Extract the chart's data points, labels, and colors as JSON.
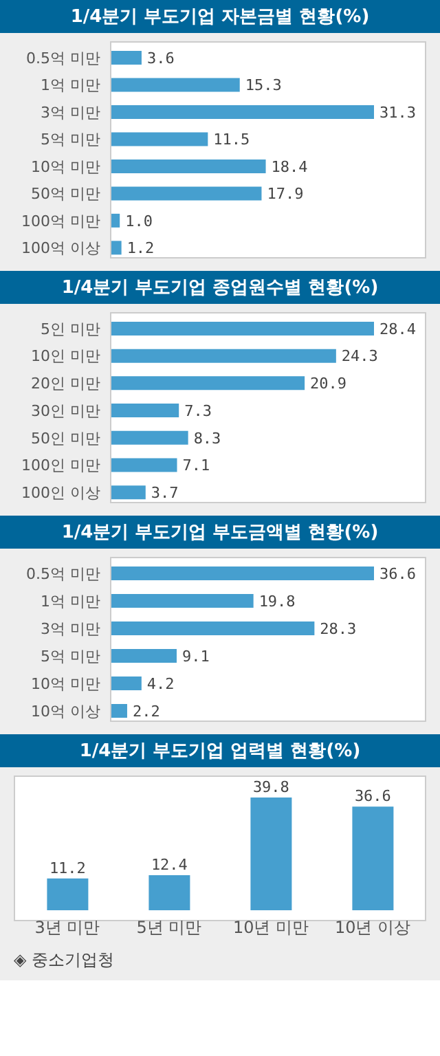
{
  "chart_data": [
    {
      "type": "bar",
      "orientation": "horizontal",
      "title": "1/4분기 부도기업 자본금별 현황(%)",
      "categories": [
        "0.5억 미만",
        "1억 미만",
        "3억 미만",
        "5억 미만",
        "10억 미만",
        "50억 미만",
        "100억 미만",
        "100억 이상"
      ],
      "values": [
        3.6,
        15.3,
        31.3,
        11.5,
        18.4,
        17.9,
        1.0,
        1.2
      ],
      "value_labels": [
        "3.6",
        "15.3",
        "31.3",
        "11.5",
        "18.4",
        "17.9",
        "1.0",
        "1.2"
      ],
      "color": "#469fcf"
    },
    {
      "type": "bar",
      "orientation": "horizontal",
      "title": "1/4분기 부도기업 종업원수별 현황(%)",
      "categories": [
        "5인 미만",
        "10인 미만",
        "20인 미만",
        "30인 미만",
        "50인 미만",
        "100인 미만",
        "100인 이상"
      ],
      "values": [
        28.4,
        24.3,
        20.9,
        7.3,
        8.3,
        7.1,
        3.7
      ],
      "color": "#469fcf",
      "data_labels": true
    },
    {
      "type": "bar",
      "orientation": "horizontal",
      "title": "1/4분기 부도기업 부도금액별 현황(%)",
      "categories": [
        "0.5억 미만",
        "1억 미만",
        "3억 미만",
        "5억 미만",
        "10억 미만",
        "10억 이상"
      ],
      "values": [
        36.6,
        19.8,
        28.3,
        9.1,
        4.2,
        2.2
      ],
      "color": "#469fcf",
      "data_labels": true
    },
    {
      "type": "bar",
      "title": "1/4분기 부도기업 업력별 현황(%)",
      "categories": [
        "3년 미만",
        "5년 미만",
        "10년 미만",
        "10년 이상"
      ],
      "values": [
        11.2,
        12.4,
        39.8,
        36.6
      ],
      "color": "#469fcf",
      "data_labels": true,
      "annotations": [
        "◈ 중소기업청"
      ]
    }
  ]
}
